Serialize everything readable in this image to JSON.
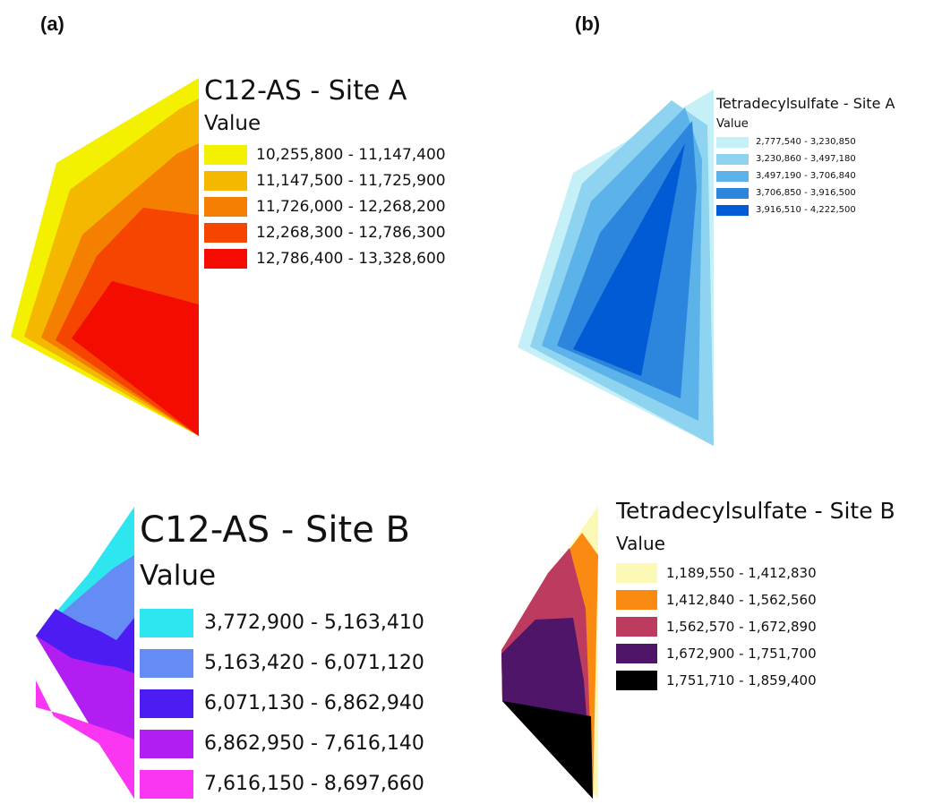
{
  "panels": {
    "a": "(a)",
    "b": "(b)"
  },
  "maps": {
    "c12_site_a": {
      "title": "C12-AS  - Site A",
      "value_label": "Value",
      "classes": [
        {
          "range": "10,255,800 - 11,147,400",
          "color": "#f3f000"
        },
        {
          "range": "11,147,500 - 11,725,900",
          "color": "#f4b800"
        },
        {
          "range": "11,726,000 - 12,268,200",
          "color": "#f57f00"
        },
        {
          "range": "12,268,300 - 12,786,300",
          "color": "#f54500"
        },
        {
          "range": "12,786,400 - 13,328,600",
          "color": "#f50c00"
        }
      ]
    },
    "tds_site_a": {
      "title": "Tetradecylsulfate - Site A",
      "value_label": "Value",
      "classes": [
        {
          "range": "2,777,540 - 3,230,850",
          "color": "#c5f0f7"
        },
        {
          "range": "3,230,860 - 3,497,180",
          "color": "#8ed3f0"
        },
        {
          "range": "3,497,190 - 3,706,840",
          "color": "#5cb3e9"
        },
        {
          "range": "3,706,850 - 3,916,500",
          "color": "#2d86de"
        },
        {
          "range": "3,916,510 - 4,222,500",
          "color": "#005bd4"
        }
      ]
    },
    "c12_site_b": {
      "title": "C12-AS - Site B",
      "value_label": "Value",
      "classes": [
        {
          "range": "3,772,900 - 5,163,410",
          "color": "#2ee6f0"
        },
        {
          "range": "5,163,420 - 6,071,120",
          "color": "#658cf5"
        },
        {
          "range": "6,071,130 - 6,862,940",
          "color": "#4d1cf2"
        },
        {
          "range": "6,862,950 - 7,616,140",
          "color": "#b21ef2"
        },
        {
          "range": "7,616,150 - 8,697,660",
          "color": "#fa36f2"
        }
      ]
    },
    "tds_site_b": {
      "title": "Tetradecylsulfate - Site B",
      "value_label": "Value",
      "classes": [
        {
          "range": "1,189,550 - 1,412,830",
          "color": "#fcf9b6"
        },
        {
          "range": "1,412,840 - 1,562,560",
          "color": "#fb8a12"
        },
        {
          "range": "1,562,570 - 1,672,890",
          "color": "#bd3b5f"
        },
        {
          "range": "1,672,900 - 1,751,700",
          "color": "#4e1568"
        },
        {
          "range": "1,751,710 - 1,859,400",
          "color": "#000000"
        }
      ]
    }
  }
}
